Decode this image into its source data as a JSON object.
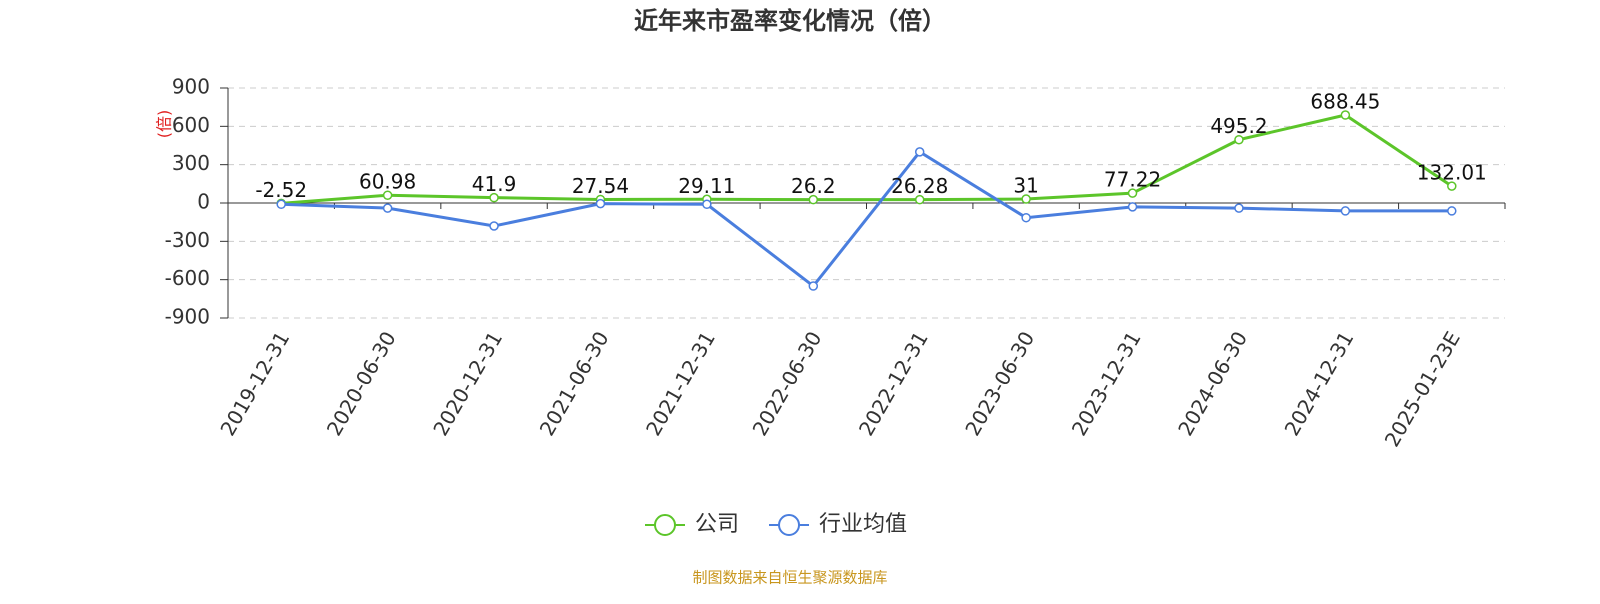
{
  "chart_data": {
    "type": "line",
    "title": "近年来市盈率变化情况（倍）",
    "y_label": "(倍)",
    "source": "制图数据来自恒生聚源数据库",
    "categories": [
      "2019-12-31",
      "2020-06-30",
      "2020-12-31",
      "2021-06-30",
      "2021-12-31",
      "2022-06-30",
      "2022-12-31",
      "2023-06-30",
      "2023-12-31",
      "2024-06-30",
      "2024-12-31",
      "2025-01-23E"
    ],
    "series": [
      {
        "name": "公司",
        "color": "#5cc52a",
        "values": [
          -2.52,
          60.98,
          41.9,
          27.54,
          29.11,
          26.2,
          26.28,
          31,
          77.22,
          495.2,
          688.45,
          132.01
        ]
      },
      {
        "name": "行业均值",
        "color": "#4a7ede",
        "values": [
          -10,
          -40,
          -180,
          -5,
          -10,
          -650,
          400,
          -115,
          -30,
          -40,
          -62,
          -62
        ]
      }
    ],
    "ylim": [
      -900,
      900
    ],
    "yticks": [
      -900,
      -600,
      -300,
      0,
      300,
      600,
      900
    ],
    "grid": true
  }
}
